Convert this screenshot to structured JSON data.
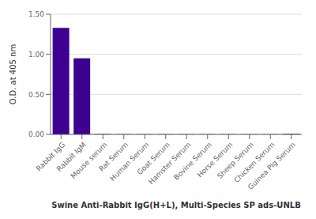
{
  "chart_data": {
    "type": "bar",
    "categories": [
      "Rabbit IgG",
      "Rabbit IgM",
      "Mouse serum",
      "Rat Serum",
      "Human Serum",
      "Goat Serum",
      "Hamster Serum",
      "Bovine Serum",
      "Horse Serum",
      "Sheep Serum",
      "Chicken Serum",
      "Guinea Pig Serum"
    ],
    "values": [
      1.33,
      0.95,
      0.005,
      0.003,
      0.003,
      0.003,
      0.003,
      0.003,
      0.003,
      0.003,
      0.003,
      0.008
    ],
    "color": "#3d0090",
    "ylabel": "O.D. at 405 nm",
    "xlabel": "Swine Anti-Rabbit IgG(H+L), Multi-Species SP ads-UNLB",
    "ylim": [
      0,
      1.5
    ],
    "yticks": [
      {
        "value": 0,
        "label": "0.00"
      },
      {
        "value": 0.5,
        "label": "0.50"
      },
      {
        "value": 1,
        "label": "1.00"
      },
      {
        "value": 1.5,
        "label": "1.50"
      }
    ],
    "grid": true
  }
}
